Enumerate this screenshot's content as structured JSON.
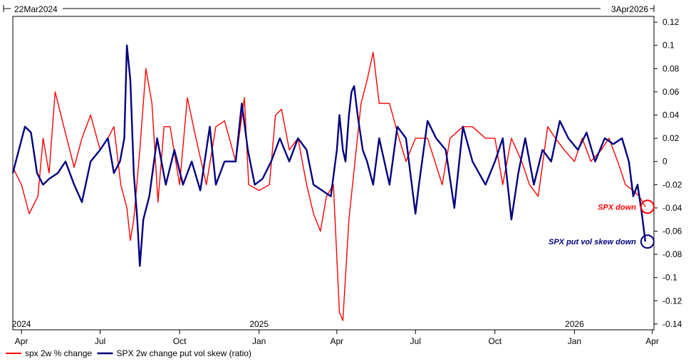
{
  "chart_data": {
    "type": "line",
    "date_range": {
      "start": "22Mar2024",
      "end": "3Apr2026"
    },
    "x_ticks": [
      "Apr",
      "Jul",
      "Oct",
      "Jan",
      "Apr",
      "Jul",
      "Oct",
      "Jan",
      "Apr"
    ],
    "year_labels": [
      "2024",
      "2025",
      "2026"
    ],
    "y_ticks": [
      "0.12",
      "0.1",
      "0.08",
      "0.06",
      "0.04",
      "0.02",
      "0",
      "-0.02",
      "-0.04",
      "-0.06",
      "-0.08",
      "-0.1",
      "-0.12",
      "-0.14"
    ],
    "ylim": [
      -0.145,
      0.125
    ],
    "grid": false,
    "legend_position": "bottom-left",
    "series": [
      {
        "name": "spx 2w % change",
        "color": "#ff0000",
        "points": [
          [
            "2024-03-22",
            -0.005
          ],
          [
            "2024-04-01",
            -0.02
          ],
          [
            "2024-04-10",
            -0.045
          ],
          [
            "2024-04-20",
            -0.03
          ],
          [
            "2024-04-26",
            0.02
          ],
          [
            "2024-05-03",
            -0.01
          ],
          [
            "2024-05-10",
            0.06
          ],
          [
            "2024-05-20",
            0.03
          ],
          [
            "2024-06-01",
            -0.005
          ],
          [
            "2024-06-10",
            0.02
          ],
          [
            "2024-06-20",
            0.04
          ],
          [
            "2024-07-01",
            0.01
          ],
          [
            "2024-07-10",
            0.02
          ],
          [
            "2024-07-17",
            0.03
          ],
          [
            "2024-07-25",
            -0.02
          ],
          [
            "2024-08-01",
            -0.04
          ],
          [
            "2024-08-05",
            -0.068
          ],
          [
            "2024-08-09",
            -0.05
          ],
          [
            "2024-08-16",
            0.01
          ],
          [
            "2024-08-23",
            0.08
          ],
          [
            "2024-08-30",
            0.05
          ],
          [
            "2024-09-06",
            -0.035
          ],
          [
            "2024-09-13",
            0.03
          ],
          [
            "2024-09-20",
            0.03
          ],
          [
            "2024-10-01",
            -0.02
          ],
          [
            "2024-10-10",
            0.055
          ],
          [
            "2024-10-20",
            0.02
          ],
          [
            "2024-11-01",
            -0.02
          ],
          [
            "2024-11-12",
            0.03
          ],
          [
            "2024-11-22",
            0.035
          ],
          [
            "2024-12-05",
            0.0
          ],
          [
            "2024-12-15",
            0.055
          ],
          [
            "2024-12-20",
            -0.02
          ],
          [
            "2025-01-01",
            -0.025
          ],
          [
            "2025-01-13",
            -0.02
          ],
          [
            "2025-01-20",
            0.04
          ],
          [
            "2025-01-27",
            0.045
          ],
          [
            "2025-02-05",
            0.01
          ],
          [
            "2025-02-15",
            0.02
          ],
          [
            "2025-02-25",
            -0.02
          ],
          [
            "2025-03-05",
            -0.045
          ],
          [
            "2025-03-13",
            -0.06
          ],
          [
            "2025-03-20",
            -0.03
          ],
          [
            "2025-03-28",
            -0.02
          ],
          [
            "2025-04-04",
            -0.13
          ],
          [
            "2025-04-08",
            -0.137
          ],
          [
            "2025-04-15",
            -0.05
          ],
          [
            "2025-04-22",
            0.0
          ],
          [
            "2025-04-29",
            0.05
          ],
          [
            "2025-05-06",
            0.07
          ],
          [
            "2025-05-13",
            0.094
          ],
          [
            "2025-05-20",
            0.05
          ],
          [
            "2025-06-01",
            0.05
          ],
          [
            "2025-06-10",
            0.025
          ],
          [
            "2025-06-20",
            0.0
          ],
          [
            "2025-07-01",
            0.02
          ],
          [
            "2025-07-15",
            0.02
          ],
          [
            "2025-08-01",
            -0.02
          ],
          [
            "2025-08-10",
            0.02
          ],
          [
            "2025-08-25",
            0.03
          ],
          [
            "2025-09-05",
            0.03
          ],
          [
            "2025-09-20",
            0.02
          ],
          [
            "2025-10-01",
            0.02
          ],
          [
            "2025-10-10",
            -0.02
          ],
          [
            "2025-10-20",
            0.02
          ],
          [
            "2025-11-01",
            0.0
          ],
          [
            "2025-11-10",
            -0.02
          ],
          [
            "2025-11-20",
            -0.03
          ],
          [
            "2025-12-01",
            0.03
          ],
          [
            "2025-12-10",
            0.02
          ],
          [
            "2025-12-20",
            0.01
          ],
          [
            "2026-01-01",
            0.0
          ],
          [
            "2026-01-10",
            0.02
          ],
          [
            "2026-01-20",
            0.0
          ],
          [
            "2026-02-01",
            0.01
          ],
          [
            "2026-02-10",
            0.02
          ],
          [
            "2026-02-20",
            0.0
          ],
          [
            "2026-03-01",
            -0.02
          ],
          [
            "2026-03-10",
            -0.025
          ],
          [
            "2026-03-17",
            -0.03
          ],
          [
            "2026-03-24",
            -0.039
          ]
        ]
      },
      {
        "name": "SPX 2w change put vol skew (ratio)",
        "color": "#000080",
        "points": [
          [
            "2024-03-22",
            -0.01
          ],
          [
            "2024-03-29",
            0.01
          ],
          [
            "2024-04-05",
            0.03
          ],
          [
            "2024-04-12",
            0.025
          ],
          [
            "2024-04-19",
            -0.01
          ],
          [
            "2024-04-26",
            -0.02
          ],
          [
            "2024-05-03",
            -0.015
          ],
          [
            "2024-05-13",
            -0.01
          ],
          [
            "2024-05-22",
            0.0
          ],
          [
            "2024-06-01",
            -0.02
          ],
          [
            "2024-06-10",
            -0.035
          ],
          [
            "2024-06-20",
            0.0
          ],
          [
            "2024-07-01",
            0.01
          ],
          [
            "2024-07-10",
            0.02
          ],
          [
            "2024-07-17",
            -0.01
          ],
          [
            "2024-07-24",
            0.0
          ],
          [
            "2024-07-29",
            0.02
          ],
          [
            "2024-08-01",
            0.1
          ],
          [
            "2024-08-05",
            0.07
          ],
          [
            "2024-08-09",
            -0.01
          ],
          [
            "2024-08-13",
            -0.05
          ],
          [
            "2024-08-16",
            -0.09
          ],
          [
            "2024-08-20",
            -0.05
          ],
          [
            "2024-08-27",
            -0.03
          ],
          [
            "2024-09-05",
            0.02
          ],
          [
            "2024-09-15",
            -0.02
          ],
          [
            "2024-09-25",
            0.01
          ],
          [
            "2024-10-05",
            -0.02
          ],
          [
            "2024-10-15",
            0.0
          ],
          [
            "2024-10-25",
            -0.025
          ],
          [
            "2024-11-05",
            0.03
          ],
          [
            "2024-11-12",
            -0.02
          ],
          [
            "2024-11-22",
            0.0
          ],
          [
            "2024-12-05",
            0.0
          ],
          [
            "2024-12-12",
            0.05
          ],
          [
            "2024-12-19",
            0.01
          ],
          [
            "2024-12-27",
            -0.02
          ],
          [
            "2025-01-05",
            -0.015
          ],
          [
            "2025-01-15",
            0.0
          ],
          [
            "2025-01-25",
            0.02
          ],
          [
            "2025-02-05",
            0.0
          ],
          [
            "2025-02-15",
            0.02
          ],
          [
            "2025-02-25",
            0.01
          ],
          [
            "2025-03-05",
            -0.02
          ],
          [
            "2025-03-15",
            -0.025
          ],
          [
            "2025-03-25",
            -0.03
          ],
          [
            "2025-04-01",
            0.01
          ],
          [
            "2025-04-04",
            0.04
          ],
          [
            "2025-04-08",
            0.01
          ],
          [
            "2025-04-11",
            0.0
          ],
          [
            "2025-04-15",
            0.04
          ],
          [
            "2025-04-18",
            0.06
          ],
          [
            "2025-04-21",
            0.065
          ],
          [
            "2025-04-25",
            0.04
          ],
          [
            "2025-05-01",
            0.01
          ],
          [
            "2025-05-06",
            0.0
          ],
          [
            "2025-05-13",
            -0.02
          ],
          [
            "2025-05-20",
            0.02
          ],
          [
            "2025-06-01",
            -0.02
          ],
          [
            "2025-06-10",
            0.03
          ],
          [
            "2025-06-20",
            0.02
          ],
          [
            "2025-07-01",
            -0.045
          ],
          [
            "2025-07-05",
            -0.02
          ],
          [
            "2025-07-15",
            0.035
          ],
          [
            "2025-07-25",
            0.02
          ],
          [
            "2025-08-05",
            0.01
          ],
          [
            "2025-08-15",
            -0.04
          ],
          [
            "2025-08-25",
            0.03
          ],
          [
            "2025-09-05",
            0.0
          ],
          [
            "2025-09-20",
            -0.02
          ],
          [
            "2025-10-01",
            0.0
          ],
          [
            "2025-10-10",
            0.02
          ],
          [
            "2025-10-20",
            -0.05
          ],
          [
            "2025-10-28",
            -0.01
          ],
          [
            "2025-11-05",
            0.02
          ],
          [
            "2025-11-15",
            -0.02
          ],
          [
            "2025-11-25",
            0.01
          ],
          [
            "2025-12-05",
            0.0
          ],
          [
            "2025-12-15",
            0.035
          ],
          [
            "2025-12-25",
            0.02
          ],
          [
            "2026-01-05",
            0.01
          ],
          [
            "2026-01-15",
            0.025
          ],
          [
            "2026-01-25",
            0.0
          ],
          [
            "2026-02-05",
            0.02
          ],
          [
            "2026-02-15",
            0.015
          ],
          [
            "2026-02-25",
            0.02
          ],
          [
            "2026-03-05",
            0.0
          ],
          [
            "2026-03-10",
            -0.03
          ],
          [
            "2026-03-15",
            -0.02
          ],
          [
            "2026-03-20",
            -0.045
          ],
          [
            "2026-03-24",
            -0.069
          ]
        ]
      }
    ],
    "annotations": [
      {
        "text": "SPX down",
        "color": "#ff0000",
        "at": [
          "2026-03-24",
          -0.039
        ]
      },
      {
        "text": "SPX put vol skew down",
        "color": "#000080",
        "at": [
          "2026-03-24",
          -0.069
        ]
      }
    ]
  }
}
